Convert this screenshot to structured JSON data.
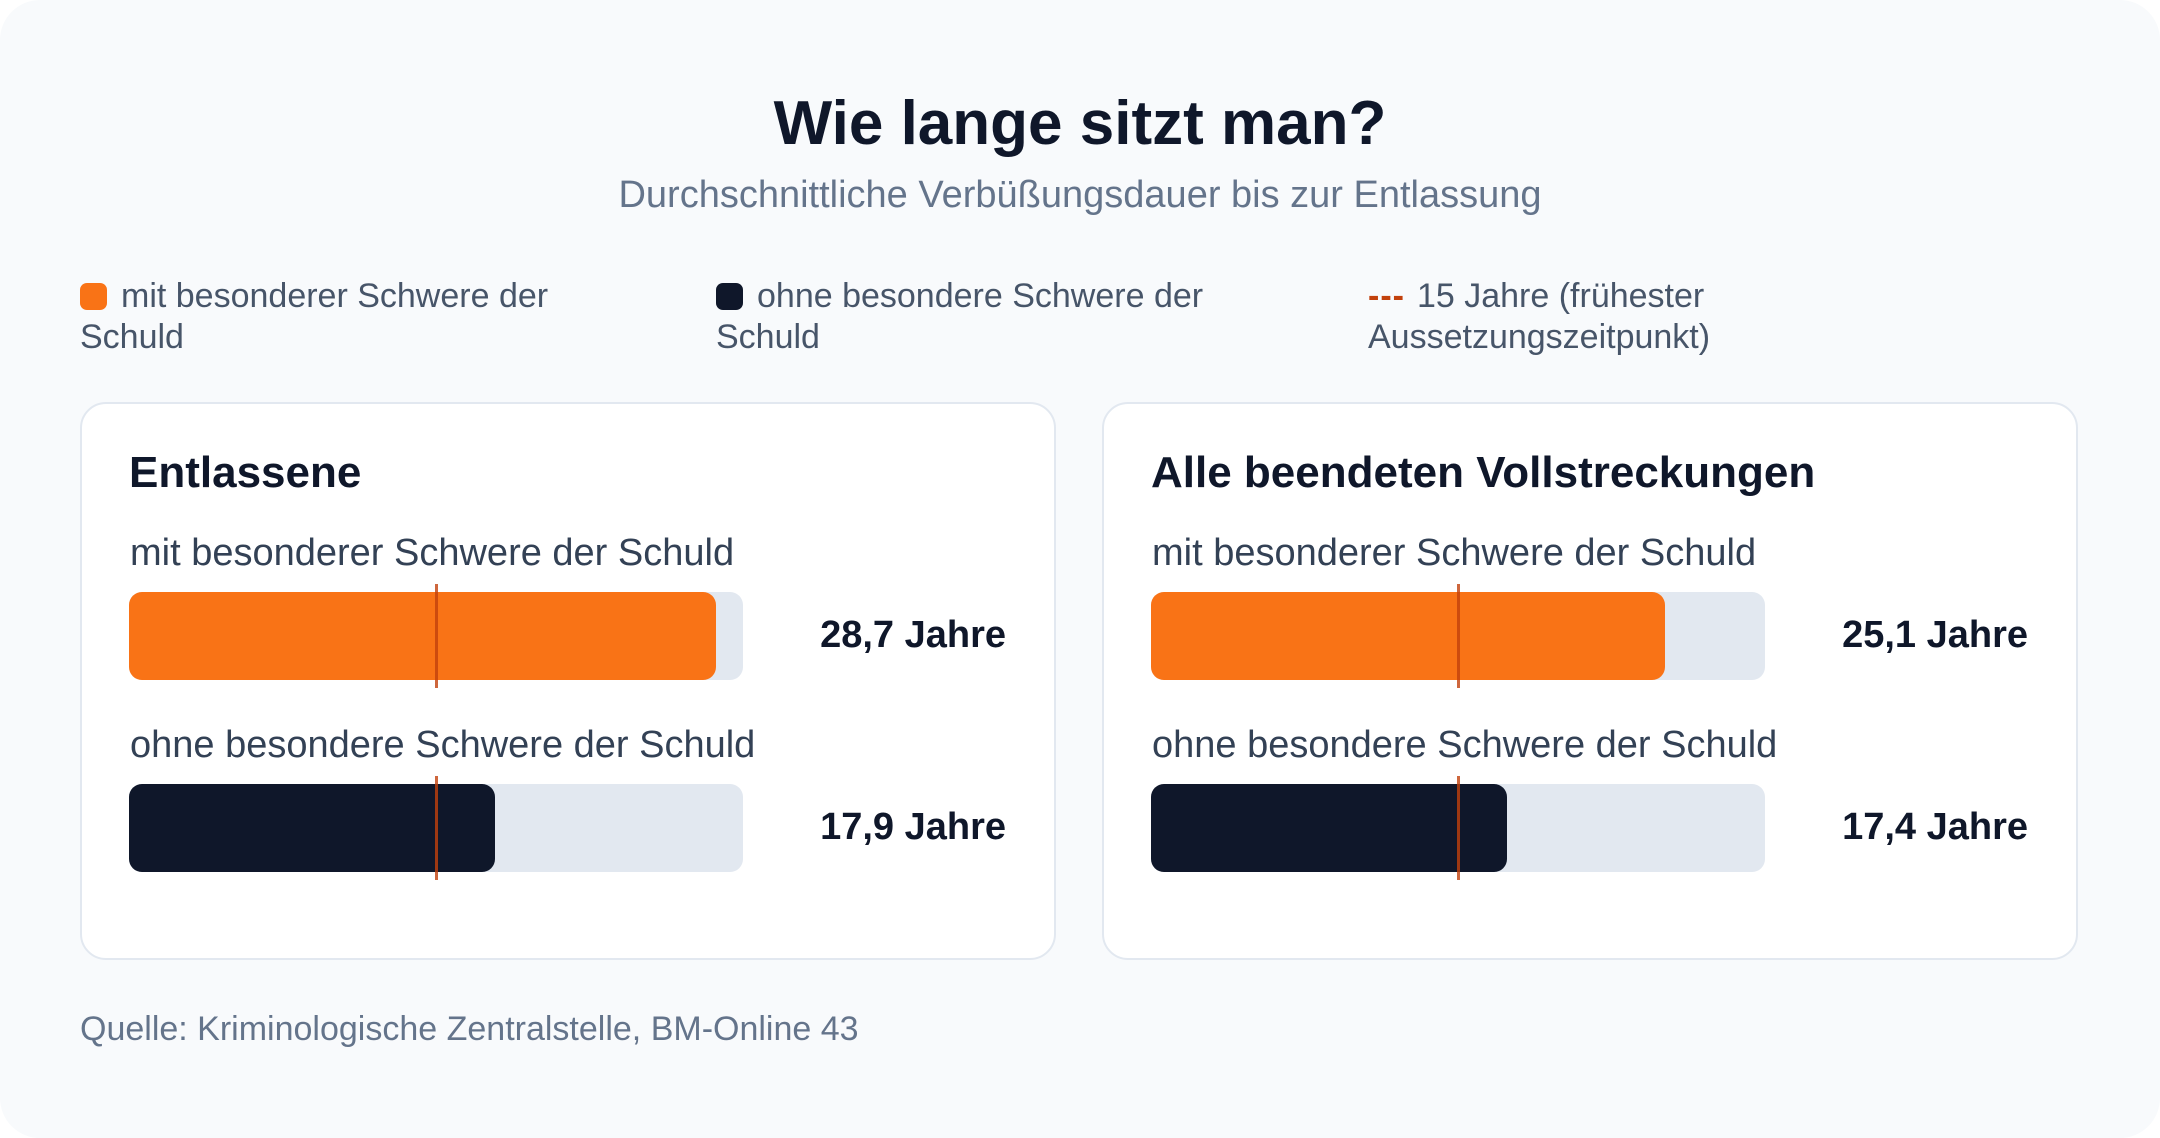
{
  "header": {
    "title": "Wie lange sitzt man?",
    "subtitle": "Durchschnittliche Verbüßungsdauer bis zur Entlassung"
  },
  "legend": {
    "with_label": "mit besonderer Schwere der Schuld",
    "without_label": "ohne besondere Schwere der Schuld",
    "marker_label": "15 Jahre (frühester Aussetzungszeitpunkt)",
    "marker_dash": "---"
  },
  "colors": {
    "with": "#f97316",
    "without": "#0f172a",
    "marker": "#c2410c",
    "track": "#e2e8f0"
  },
  "source": "Quelle: Kriminologische Zentralstelle, BM-Online 43",
  "chart_data": [
    {
      "type": "bar",
      "title": "Entlassene",
      "categories": [
        "mit besonderer Schwere der Schuld",
        "ohne besondere Schwere der Schuld"
      ],
      "values": [
        28.7,
        17.9
      ],
      "value_labels": [
        "28,7 Jahre",
        "17,9 Jahre"
      ],
      "unit": "Jahre",
      "xlim": [
        0,
        30
      ],
      "reference_line": 15
    },
    {
      "type": "bar",
      "title": "Alle beendeten Vollstreckungen",
      "categories": [
        "mit besonderer Schwere der Schuld",
        "ohne besondere Schwere der Schuld"
      ],
      "values": [
        25.1,
        17.4
      ],
      "value_labels": [
        "25,1 Jahre",
        "17,4 Jahre"
      ],
      "unit": "Jahre",
      "xlim": [
        0,
        30
      ],
      "reference_line": 15
    }
  ]
}
